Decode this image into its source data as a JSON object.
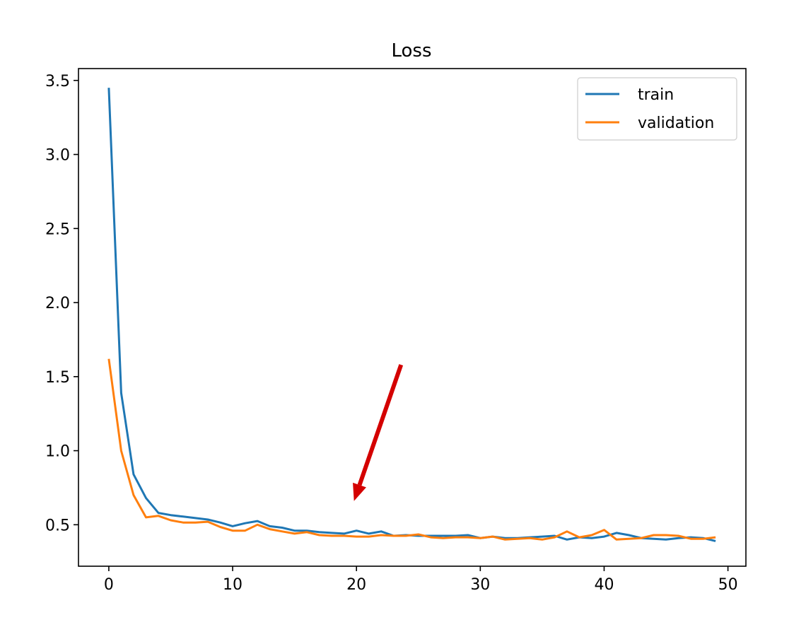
{
  "chart_data": {
    "type": "line",
    "title": "Loss",
    "xlabel": "",
    "ylabel": "",
    "xlim": [
      -2.45,
      51.45
    ],
    "ylim": [
      0.22,
      3.58
    ],
    "xticks": [
      0,
      10,
      20,
      30,
      40,
      50
    ],
    "yticks": [
      0.5,
      1.0,
      1.5,
      2.0,
      2.5,
      3.0,
      3.5
    ],
    "xtick_labels": [
      "0",
      "10",
      "20",
      "30",
      "40",
      "50"
    ],
    "ytick_labels": [
      "0.5",
      "1.0",
      "1.5",
      "2.0",
      "2.5",
      "3.0",
      "3.5"
    ],
    "grid": false,
    "legend_position": "top-right",
    "x": [
      0,
      1,
      2,
      3,
      4,
      5,
      6,
      7,
      8,
      9,
      10,
      11,
      12,
      13,
      14,
      15,
      16,
      17,
      18,
      19,
      20,
      21,
      22,
      23,
      24,
      25,
      26,
      27,
      28,
      29,
      30,
      31,
      32,
      33,
      34,
      35,
      36,
      37,
      38,
      39,
      40,
      41,
      42,
      43,
      44,
      45,
      46,
      47,
      48,
      49
    ],
    "series": [
      {
        "name": "train",
        "color": "#1f77b4",
        "values": [
          3.45,
          1.39,
          0.84,
          0.68,
          0.58,
          0.565,
          0.555,
          0.545,
          0.535,
          0.515,
          0.49,
          0.51,
          0.525,
          0.49,
          0.48,
          0.46,
          0.46,
          0.45,
          0.445,
          0.44,
          0.46,
          0.44,
          0.455,
          0.425,
          0.43,
          0.425,
          0.425,
          0.425,
          0.425,
          0.43,
          0.41,
          0.42,
          0.41,
          0.41,
          0.415,
          0.42,
          0.425,
          0.4,
          0.415,
          0.41,
          0.42,
          0.445,
          0.43,
          0.41,
          0.405,
          0.4,
          0.41,
          0.415,
          0.41,
          0.39
        ]
      },
      {
        "name": "validation",
        "color": "#ff7f0e",
        "values": [
          1.62,
          1.0,
          0.7,
          0.55,
          0.56,
          0.53,
          0.515,
          0.515,
          0.52,
          0.485,
          0.46,
          0.46,
          0.5,
          0.47,
          0.455,
          0.44,
          0.45,
          0.43,
          0.425,
          0.425,
          0.42,
          0.42,
          0.43,
          0.425,
          0.425,
          0.435,
          0.415,
          0.41,
          0.415,
          0.415,
          0.41,
          0.42,
          0.4,
          0.405,
          0.41,
          0.4,
          0.415,
          0.455,
          0.415,
          0.43,
          0.465,
          0.4,
          0.405,
          0.41,
          0.43,
          0.43,
          0.425,
          0.405,
          0.405,
          0.415
        ]
      }
    ],
    "annotations": [
      {
        "type": "arrow",
        "color": "#d40000",
        "from": [
          23.6,
          1.58
        ],
        "to": [
          19.8,
          0.66
        ]
      }
    ]
  }
}
